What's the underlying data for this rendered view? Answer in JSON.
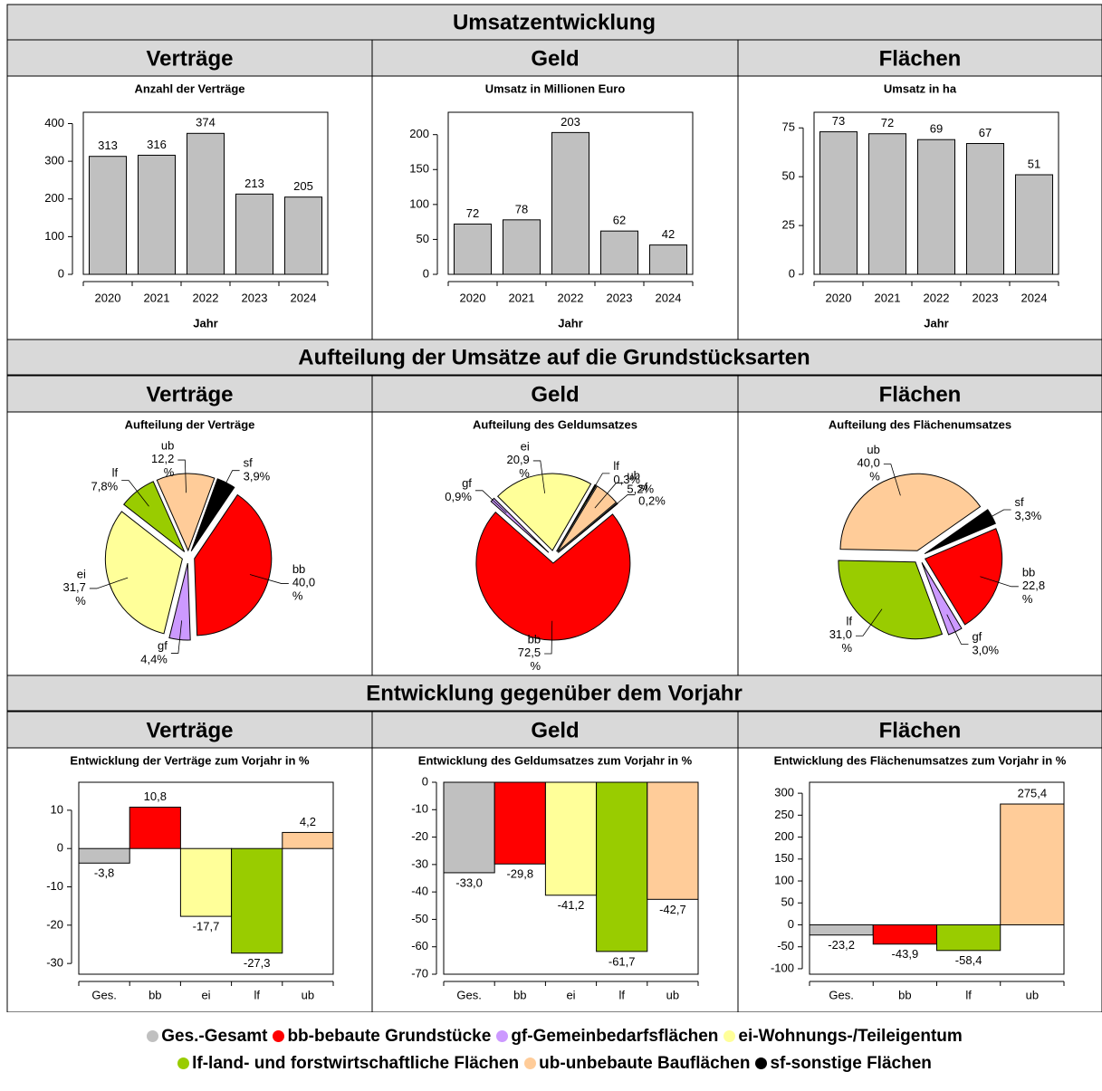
{
  "sections": [
    {
      "title": "Umsatzentwicklung",
      "columns": [
        "Verträge",
        "Geld",
        "Flächen"
      ]
    },
    {
      "title": "Aufteilung der Umsätze auf die Grundstücksarten",
      "columns": [
        "Verträge",
        "Geld",
        "Flächen"
      ]
    },
    {
      "title": "Entwicklung gegenüber dem Vorjahr",
      "columns": [
        "Verträge",
        "Geld",
        "Flächen"
      ]
    }
  ],
  "chart_data": [
    {
      "type": "bar",
      "title": "Anzahl der Verträge",
      "xlabel": "Jahr",
      "categories": [
        "2020",
        "2021",
        "2022",
        "2023",
        "2024"
      ],
      "values": [
        313,
        316,
        374,
        213,
        205
      ],
      "color": "#c0c0c0",
      "ylim": [
        0,
        430
      ],
      "yticks": [
        0,
        100,
        200,
        300,
        400
      ]
    },
    {
      "type": "bar",
      "title": "Umsatz in Millionen Euro",
      "xlabel": "Jahr",
      "categories": [
        "2020",
        "2021",
        "2022",
        "2023",
        "2024"
      ],
      "values": [
        72,
        78,
        203,
        62,
        42
      ],
      "color": "#c0c0c0",
      "ylim": [
        0,
        232
      ],
      "yticks": [
        0,
        50,
        100,
        150,
        200
      ]
    },
    {
      "type": "bar",
      "title": "Umsatz in ha",
      "xlabel": "Jahr",
      "categories": [
        "2020",
        "2021",
        "2022",
        "2023",
        "2024"
      ],
      "values": [
        73,
        72,
        69,
        67,
        51
      ],
      "color": "#c0c0c0",
      "ylim": [
        0,
        83
      ],
      "yticks": [
        0,
        25,
        50,
        75
      ]
    },
    {
      "type": "pie",
      "title": "Aufteilung der Verträge",
      "categories": [
        "sf",
        "bb",
        "gf",
        "ei",
        "lf",
        "ub"
      ],
      "values": [
        3.9,
        40.0,
        4.4,
        31.7,
        7.8,
        12.2
      ],
      "value_labels": [
        "3,9%",
        "40,0 %",
        "4,4%",
        "31,7 %",
        "7,8%",
        "12,2 %"
      ],
      "colors": [
        "#000000",
        "#ff0000",
        "#cc99ff",
        "#ffff99",
        "#99cc00",
        "#ffcc99"
      ]
    },
    {
      "type": "pie",
      "title": "Aufteilung des Geldumsatzes",
      "categories": [
        "lf",
        "ub",
        "sf",
        "bb",
        "gf",
        "ei"
      ],
      "values": [
        0.3,
        5.2,
        0.2,
        72.5,
        0.9,
        20.9
      ],
      "value_labels": [
        "0,3%",
        "5,2%",
        "0,2%",
        "72,5 %",
        "0,9%",
        "20,9 %"
      ],
      "colors": [
        "#99cc00",
        "#ffcc99",
        "#000000",
        "#ff0000",
        "#cc99ff",
        "#ffff99"
      ]
    },
    {
      "type": "pie",
      "title": "Aufteilung des Flächenumsatzes",
      "categories": [
        "sf",
        "bb",
        "gf",
        "lf",
        "ub"
      ],
      "values": [
        3.3,
        22.8,
        3.0,
        31.0,
        40.0
      ],
      "value_labels": [
        "3,3%",
        "22,8 %",
        "3,0%",
        "31,0 %",
        "40,0 %"
      ],
      "colors": [
        "#000000",
        "#ff0000",
        "#cc99ff",
        "#99cc00",
        "#ffcc99"
      ]
    },
    {
      "type": "bar",
      "title": "Entwicklung der Verträge zum Vorjahr in %",
      "categories": [
        "Ges.",
        "bb",
        "ei",
        "lf",
        "ub"
      ],
      "values": [
        -3.8,
        10.8,
        -17.7,
        -27.3,
        4.2
      ],
      "value_labels": [
        "-3,8",
        "10,8",
        "-17,7",
        "-27,3",
        "4,2"
      ],
      "colors": [
        "#c0c0c0",
        "#ff0000",
        "#ffff99",
        "#99cc00",
        "#ffcc99"
      ],
      "ylim": [
        -32.8,
        17.3
      ],
      "yticks": [
        -30,
        -20,
        -10,
        0,
        10
      ]
    },
    {
      "type": "bar",
      "title": "Entwicklung des Geldumsatzes zum Vorjahr in %",
      "categories": [
        "Ges.",
        "bb",
        "ei",
        "lf",
        "ub"
      ],
      "values": [
        -33.0,
        -29.8,
        -41.2,
        -61.7,
        -42.7
      ],
      "value_labels": [
        "-33,0",
        "-29,8",
        "-41,2",
        "-61,7",
        "-42,7"
      ],
      "colors": [
        "#c0c0c0",
        "#ff0000",
        "#ffff99",
        "#99cc00",
        "#ffcc99"
      ],
      "ylim": [
        -70,
        0
      ],
      "yticks": [
        -70,
        -60,
        -50,
        -40,
        -30,
        -20,
        -10,
        0
      ]
    },
    {
      "type": "bar",
      "title": "Entwicklung des Flächenumsatzes zum Vorjahr in %",
      "categories": [
        "Ges.",
        "bb",
        "lf",
        "ub"
      ],
      "values": [
        -23.2,
        -43.9,
        -58.4,
        275.4
      ],
      "value_labels": [
        "-23,2",
        "-43,9",
        "-58,4",
        "275,4"
      ],
      "colors": [
        "#c0c0c0",
        "#ff0000",
        "#99cc00",
        "#ffcc99"
      ],
      "ylim": [
        -112.5,
        325
      ],
      "yticks": [
        -100,
        -50,
        0,
        50,
        100,
        150,
        200,
        250,
        300
      ]
    }
  ],
  "legend": [
    {
      "label": "Ges.-Gesamt",
      "color": "#c0c0c0"
    },
    {
      "label": "bb-bebaute Grundstücke",
      "color": "#ff0000"
    },
    {
      "label": "gf-Gemeinbedarfsflächen",
      "color": "#cc99ff"
    },
    {
      "label": "ei-Wohnungs-/Teileigentum",
      "color": "#ffff99"
    },
    {
      "label": "lf-land- und forstwirtschaftliche Flächen",
      "color": "#99cc00"
    },
    {
      "label": "ub-unbebaute Bauflächen",
      "color": "#ffcc99"
    },
    {
      "label": "sf-sonstige Flächen",
      "color": "#000000"
    }
  ]
}
